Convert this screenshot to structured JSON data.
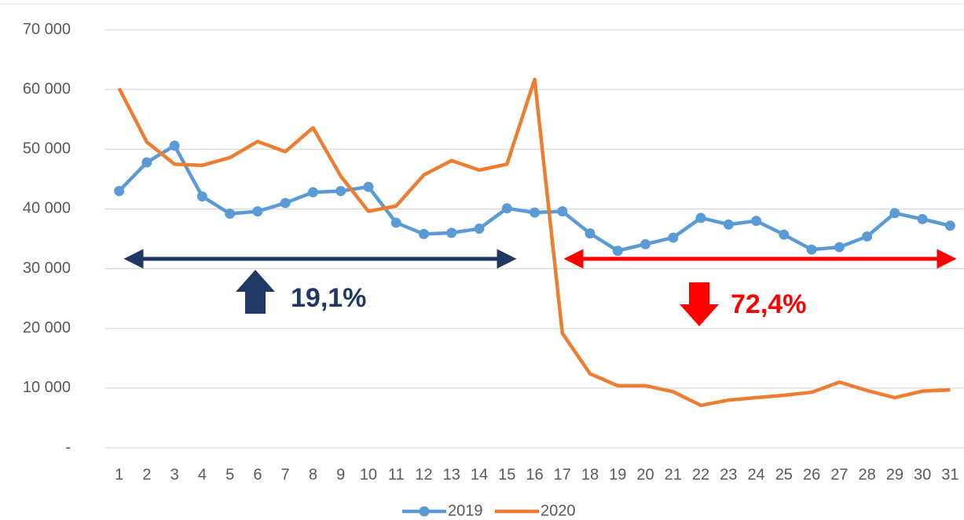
{
  "chart_data": {
    "type": "line",
    "categories": [
      "1",
      "2",
      "3",
      "4",
      "5",
      "6",
      "7",
      "8",
      "9",
      "10",
      "11",
      "12",
      "13",
      "14",
      "15",
      "16",
      "17",
      "18",
      "19",
      "20",
      "21",
      "22",
      "23",
      "24",
      "25",
      "26",
      "27",
      "28",
      "29",
      "30",
      "31"
    ],
    "series": [
      {
        "name": "2019",
        "color": "#5b9bd5",
        "marker": true,
        "values": [
          43000,
          47800,
          50600,
          42100,
          39200,
          39600,
          41000,
          42800,
          43000,
          43700,
          37700,
          35800,
          36000,
          36700,
          40100,
          39400,
          39600,
          35900,
          33000,
          34100,
          35200,
          38500,
          37400,
          38000,
          35700,
          33200,
          33600,
          35400,
          39300,
          38300,
          37200
        ]
      },
      {
        "name": "2020",
        "color": "#ed7d31",
        "marker": false,
        "values": [
          60200,
          51200,
          47500,
          47300,
          48600,
          51300,
          49600,
          53600,
          45500,
          39600,
          40500,
          45700,
          48100,
          46500,
          47500,
          61700,
          19200,
          12400,
          10400,
          10400,
          9400,
          7100,
          8000,
          8400,
          8800,
          9300,
          11000,
          9600,
          8400,
          9500,
          9700
        ]
      }
    ],
    "annotations": [
      "19,1%",
      "72,4%"
    ],
    "ylim": [
      0,
      70000
    ],
    "yticks": [
      {
        "value": 0,
        "label": "-"
      },
      {
        "value": 10000,
        "label": "10 000"
      },
      {
        "value": 20000,
        "label": "20 000"
      },
      {
        "value": 30000,
        "label": "30 000"
      },
      {
        "value": 40000,
        "label": "40 000"
      },
      {
        "value": 50000,
        "label": "50 000"
      },
      {
        "value": 60000,
        "label": "60 000"
      },
      {
        "value": 70000,
        "label": "70 000"
      }
    ],
    "grid": true,
    "legend": "bottom"
  }
}
